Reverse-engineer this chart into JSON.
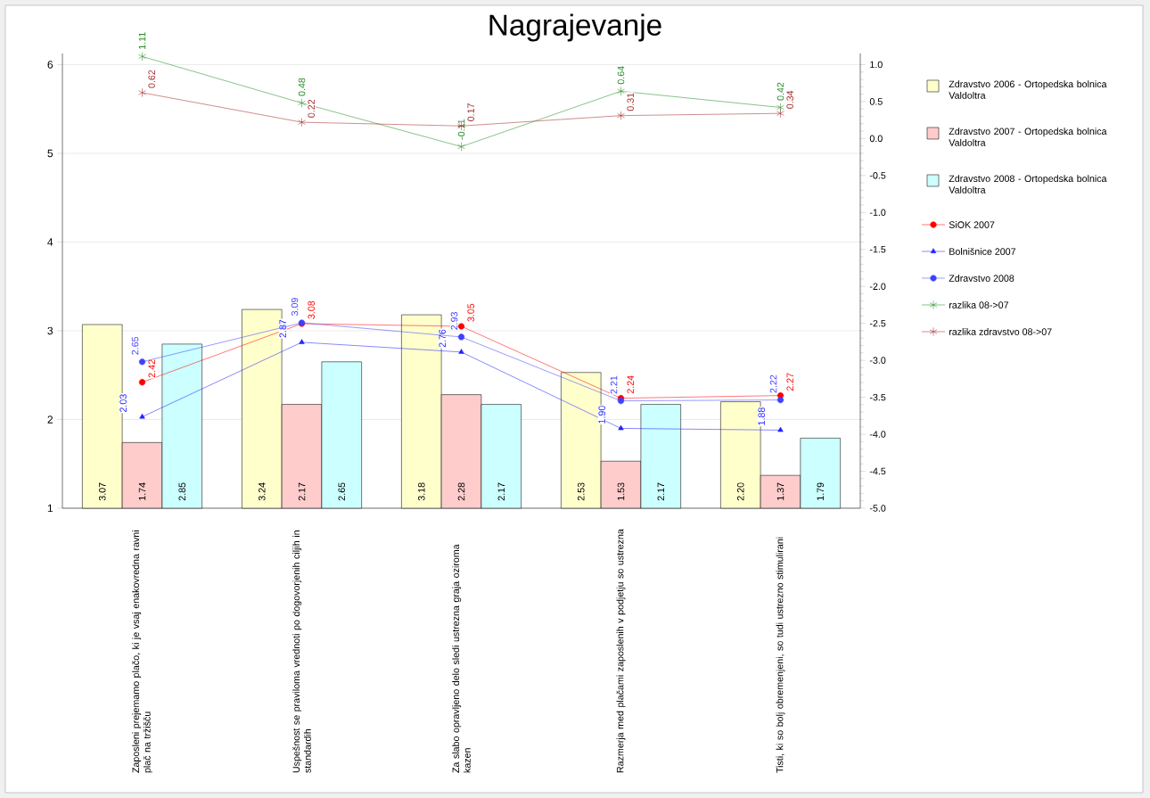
{
  "chart_data": {
    "type": "bar",
    "title": "Nagrajevanje",
    "categories": [
      "Zaposleni prejemamo plačo, ki je vsaj enakovredna ravni plač na tržišču",
      "Uspešnost se praviloma vrednoti po dogovorjenih ciljih in standardih",
      "Za slabo opravljeno delo sledi ustrezna graja oziroma kazen",
      "Razmerja med plačami zaposlenih v podjetju so ustrezna",
      "Tisti, ki so bolj obremenjeni, so tudi ustrezno stimulirani"
    ],
    "series": [
      {
        "name": "Zdravstvo 2006 - Ortopedska bolnica Valdoltra",
        "color": "#ffffcc",
        "values": [
          3.07,
          3.24,
          3.18,
          2.53,
          2.2
        ],
        "value_labels": [
          "3.07",
          "3.24",
          "3.18",
          "2.53",
          "2.20"
        ]
      },
      {
        "name": "Zdravstvo 2007 - Ortopedska bolnica Valdoltra",
        "color": "#ffcccc",
        "values": [
          1.74,
          2.17,
          2.28,
          1.53,
          1.37
        ],
        "value_labels": [
          "1.74",
          "2.17",
          "2.28",
          "1.53",
          "1.37"
        ]
      },
      {
        "name": "Zdravstvo 2008 - Ortopedska bolnica Valdoltra",
        "color": "#ccffff",
        "values": [
          2.85,
          2.65,
          2.17,
          2.17,
          1.79
        ],
        "value_labels": [
          "2.85",
          "2.65",
          "2.17",
          "2.17",
          "1.79"
        ]
      },
      {
        "name": "SiOK 2007",
        "type": "line",
        "color": "#ff0000",
        "marker": "circle",
        "values": [
          2.42,
          3.08,
          3.05,
          2.24,
          2.27
        ],
        "value_labels": [
          "2.42",
          "3.08",
          "3.05",
          "2.24",
          "2.27"
        ]
      },
      {
        "name": "Bolnišnice 2007",
        "type": "line",
        "color": "#2020ff",
        "marker": "triangle",
        "values": [
          2.03,
          2.87,
          2.76,
          1.9,
          1.88
        ],
        "value_labels": [
          "2.03",
          "2.87",
          "2.76",
          "1.90",
          "1.88"
        ]
      },
      {
        "name": "Zdravstvo 2008",
        "type": "line",
        "color": "#4040ff",
        "marker": "circle",
        "values": [
          2.65,
          3.09,
          2.93,
          2.21,
          2.22
        ],
        "value_labels": [
          "2.65",
          "3.09",
          "2.93",
          "2.21",
          "2.22"
        ]
      },
      {
        "name": "razlika 08->07",
        "type": "line",
        "axis": "y2",
        "color": "#228b22",
        "marker": "cross",
        "values": [
          1.11,
          0.48,
          -0.11,
          0.64,
          0.42
        ],
        "value_labels": [
          "1.11",
          "0.48",
          "-0.11",
          "0.64",
          "0.42"
        ]
      },
      {
        "name": "razlika zdravstvo 08->07",
        "type": "line",
        "axis": "y2",
        "color": "#a52a2a",
        "marker": "cross",
        "values": [
          0.62,
          0.22,
          0.17,
          0.31,
          0.34
        ],
        "value_labels": [
          "0.62",
          "0.22",
          "0.17",
          "0.31",
          "0.34"
        ]
      }
    ],
    "ylim": [
      1,
      6.125
    ],
    "yticks": [
      1,
      2,
      3,
      4,
      5,
      6
    ],
    "y2lim": [
      -5,
      1.15
    ],
    "y2ticks": [
      {
        "value": -5,
        "label": "-5.0"
      },
      {
        "value": -4.5,
        "label": "-4.5"
      },
      {
        "value": -4,
        "label": "-4.0"
      },
      {
        "value": -3.5,
        "label": "-3.5"
      },
      {
        "value": -3,
        "label": "-3.0"
      },
      {
        "value": -2.5,
        "label": "-2.5"
      },
      {
        "value": -2,
        "label": "-2.0"
      },
      {
        "value": -1.5,
        "label": "-1.5"
      },
      {
        "value": -1,
        "label": "-1.0"
      },
      {
        "value": -0.5,
        "label": "-0.5"
      },
      {
        "value": 0,
        "label": "0.0"
      },
      {
        "value": 0.5,
        "label": "0.5"
      },
      {
        "value": 1,
        "label": "1.0"
      }
    ],
    "grid": "y",
    "legend": "right"
  }
}
